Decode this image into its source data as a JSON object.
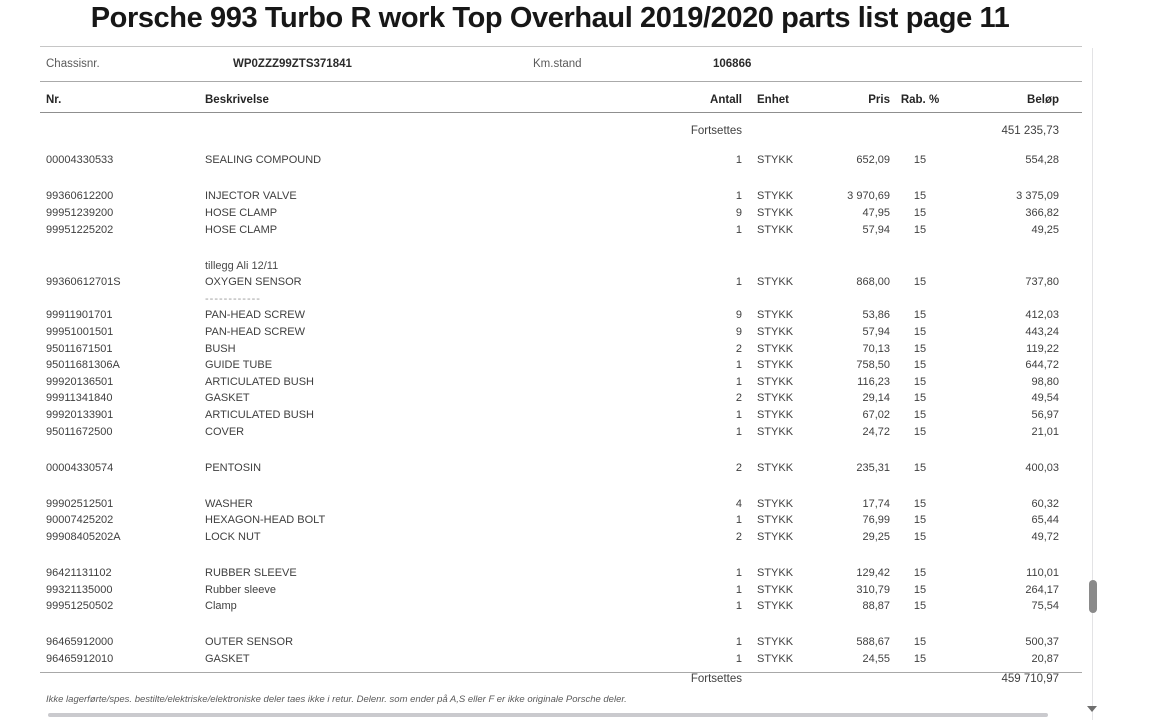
{
  "title": "Porsche 993 Turbo R work Top Overhaul 2019/2020 parts list page 11",
  "document": {
    "chassis": {
      "label": "Chassisnr.",
      "value": "WP0ZZZ99ZTS371841"
    },
    "km": {
      "label": "Km.stand",
      "value": "106866"
    },
    "columns": {
      "nr": "Nr.",
      "beskrivelse": "Beskrivelse",
      "antall": "Antall",
      "enhet": "Enhet",
      "pris": "Pris",
      "rab": "Rab. %",
      "belop": "Beløp"
    },
    "carry_top": {
      "label": "Fortsettes",
      "amount": "451 235,73"
    },
    "carry_bottom": {
      "label": "Fortsettes",
      "amount": "459 710,97"
    },
    "rows": [
      {
        "type": "item",
        "nr": "00004330533",
        "desc": "SEALING COMPOUND",
        "antall": "1",
        "enhet": "STYKK",
        "pris": "652,09",
        "rab": "15",
        "belop": "554,28"
      },
      {
        "type": "spacer"
      },
      {
        "type": "item",
        "nr": "99360612200",
        "desc": "INJECTOR VALVE",
        "antall": "1",
        "enhet": "STYKK",
        "pris": "3 970,69",
        "rab": "15",
        "belop": "3 375,09"
      },
      {
        "type": "item",
        "nr": "99951239200",
        "desc": "HOSE CLAMP",
        "antall": "9",
        "enhet": "STYKK",
        "pris": "47,95",
        "rab": "15",
        "belop": "366,82"
      },
      {
        "type": "item",
        "nr": "99951225202",
        "desc": "HOSE CLAMP",
        "antall": "1",
        "enhet": "STYKK",
        "pris": "57,94",
        "rab": "15",
        "belop": "49,25"
      },
      {
        "type": "spacer"
      },
      {
        "type": "note",
        "desc": "tillegg Ali 12/11"
      },
      {
        "type": "item",
        "nr": "99360612701S",
        "desc": "OXYGEN SENSOR",
        "antall": "1",
        "enhet": "STYKK",
        "pris": "868,00",
        "rab": "15",
        "belop": "737,80"
      },
      {
        "type": "note",
        "desc": "------------"
      },
      {
        "type": "item",
        "nr": "99911901701",
        "desc": "PAN-HEAD SCREW",
        "antall": "9",
        "enhet": "STYKK",
        "pris": "53,86",
        "rab": "15",
        "belop": "412,03"
      },
      {
        "type": "item",
        "nr": "99951001501",
        "desc": "PAN-HEAD SCREW",
        "antall": "9",
        "enhet": "STYKK",
        "pris": "57,94",
        "rab": "15",
        "belop": "443,24"
      },
      {
        "type": "item",
        "nr": "95011671501",
        "desc": "BUSH",
        "antall": "2",
        "enhet": "STYKK",
        "pris": "70,13",
        "rab": "15",
        "belop": "119,22"
      },
      {
        "type": "item",
        "nr": "95011681306A",
        "desc": "GUIDE TUBE",
        "antall": "1",
        "enhet": "STYKK",
        "pris": "758,50",
        "rab": "15",
        "belop": "644,72"
      },
      {
        "type": "item",
        "nr": "99920136501",
        "desc": "ARTICULATED BUSH",
        "antall": "1",
        "enhet": "STYKK",
        "pris": "116,23",
        "rab": "15",
        "belop": "98,80"
      },
      {
        "type": "item",
        "nr": "99911341840",
        "desc": "GASKET",
        "antall": "2",
        "enhet": "STYKK",
        "pris": "29,14",
        "rab": "15",
        "belop": "49,54"
      },
      {
        "type": "item",
        "nr": "99920133901",
        "desc": "ARTICULATED BUSH",
        "antall": "1",
        "enhet": "STYKK",
        "pris": "67,02",
        "rab": "15",
        "belop": "56,97"
      },
      {
        "type": "item",
        "nr": "95011672500",
        "desc": "COVER",
        "antall": "1",
        "enhet": "STYKK",
        "pris": "24,72",
        "rab": "15",
        "belop": "21,01"
      },
      {
        "type": "spacer"
      },
      {
        "type": "item",
        "nr": "00004330574",
        "desc": "PENTOSIN",
        "antall": "2",
        "enhet": "STYKK",
        "pris": "235,31",
        "rab": "15",
        "belop": "400,03"
      },
      {
        "type": "spacer"
      },
      {
        "type": "item",
        "nr": "99902512501",
        "desc": "WASHER",
        "antall": "4",
        "enhet": "STYKK",
        "pris": "17,74",
        "rab": "15",
        "belop": "60,32"
      },
      {
        "type": "item",
        "nr": "90007425202",
        "desc": "HEXAGON-HEAD BOLT",
        "antall": "1",
        "enhet": "STYKK",
        "pris": "76,99",
        "rab": "15",
        "belop": "65,44"
      },
      {
        "type": "item",
        "nr": "99908405202A",
        "desc": "LOCK NUT",
        "antall": "2",
        "enhet": "STYKK",
        "pris": "29,25",
        "rab": "15",
        "belop": "49,72"
      },
      {
        "type": "spacer"
      },
      {
        "type": "item",
        "nr": "96421131102",
        "desc": "RUBBER SLEEVE",
        "antall": "1",
        "enhet": "STYKK",
        "pris": "129,42",
        "rab": "15",
        "belop": "110,01"
      },
      {
        "type": "item",
        "nr": "99321135000",
        "desc": "Rubber sleeve",
        "antall": "1",
        "enhet": "STYKK",
        "pris": "310,79",
        "rab": "15",
        "belop": "264,17"
      },
      {
        "type": "item",
        "nr": "99951250502",
        "desc": "Clamp",
        "antall": "1",
        "enhet": "STYKK",
        "pris": "88,87",
        "rab": "15",
        "belop": "75,54"
      },
      {
        "type": "spacer"
      },
      {
        "type": "item",
        "nr": "96465912000",
        "desc": "OUTER SENSOR",
        "antall": "1",
        "enhet": "STYKK",
        "pris": "588,67",
        "rab": "15",
        "belop": "500,37"
      },
      {
        "type": "item",
        "nr": "96465912010",
        "desc": "GASKET",
        "antall": "1",
        "enhet": "STYKK",
        "pris": "24,55",
        "rab": "15",
        "belop": "20,87"
      }
    ],
    "footer_note": "Ikke lagerførte/spes. bestilte/elektriske/elektroniske deler taes ikke i retur. Delenr. som ender på A,S eller F er ikke originale Porsche deler."
  },
  "colors": {
    "text": "#3f3f3f",
    "heading_text": "#262626",
    "title_text": "#171717",
    "muted_note": "#9a9a9a",
    "divider": "#8f8f8f",
    "scroll_thumb": "#8a8a8a"
  }
}
